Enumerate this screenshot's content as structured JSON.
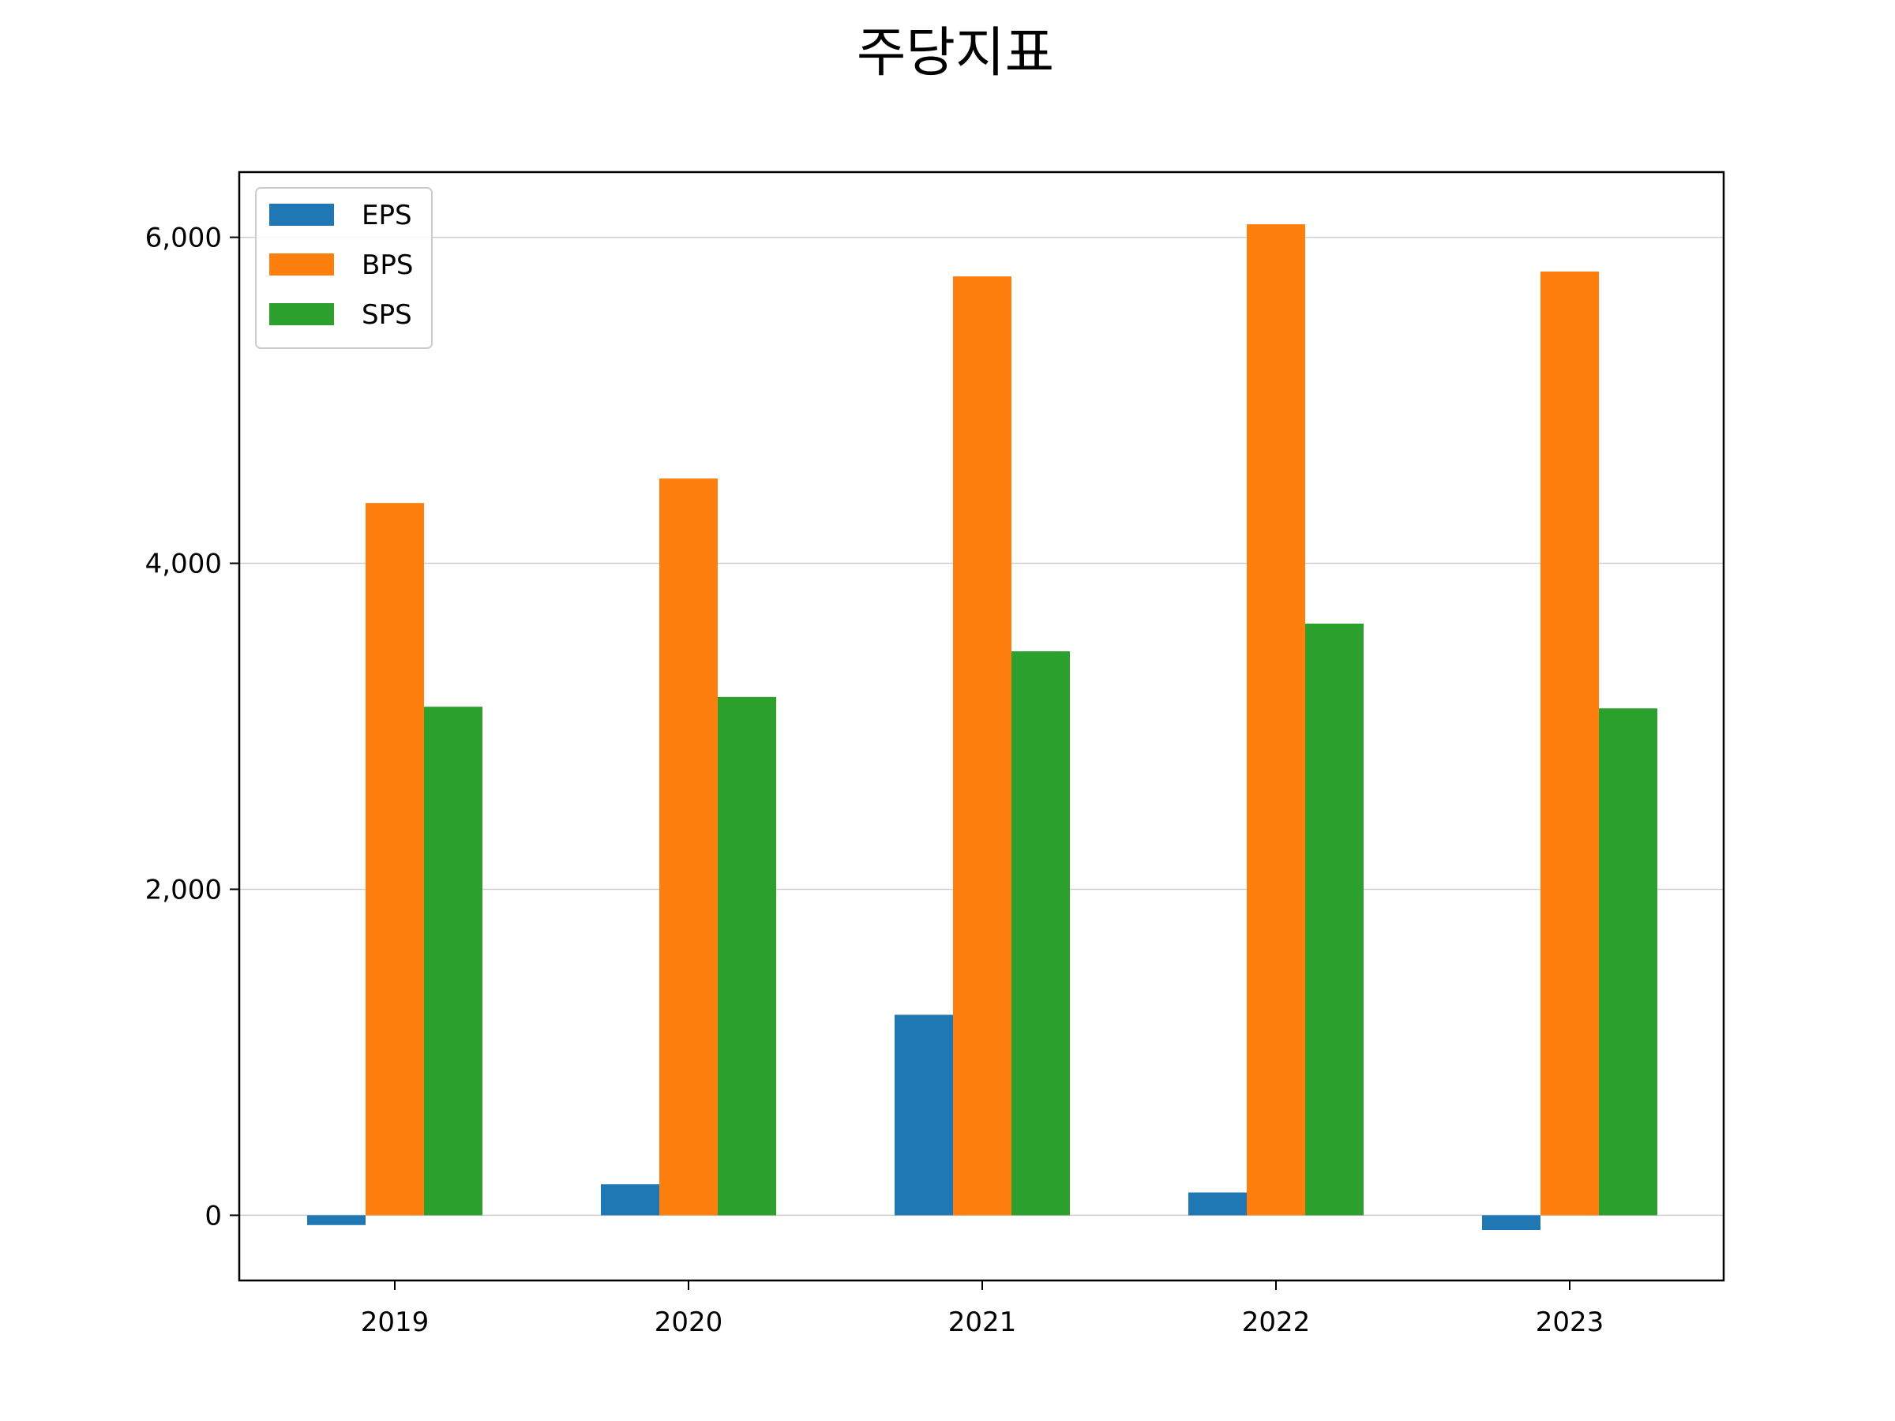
{
  "chart_data": {
    "type": "bar",
    "title": "주당지표",
    "xlabel": "",
    "ylabel": "",
    "categories": [
      "2019",
      "2020",
      "2021",
      "2022",
      "2023"
    ],
    "series": [
      {
        "name": "EPS",
        "color": "#1f77b4",
        "values": [
          -60,
          190,
          1230,
          140,
          -90
        ]
      },
      {
        "name": "BPS",
        "color": "#ff7f0e",
        "values": [
          4370,
          4520,
          5760,
          6080,
          5790
        ]
      },
      {
        "name": "SPS",
        "color": "#2ca02c",
        "values": [
          3120,
          3180,
          3460,
          3630,
          3110
        ]
      }
    ],
    "ylim": [
      -400,
      6400
    ],
    "yticks": [
      0,
      2000,
      4000,
      6000
    ],
    "ytick_labels": [
      "0",
      "2,000",
      "4,000",
      "6,000"
    ],
    "grid": "y",
    "legend_position": "top-left"
  }
}
